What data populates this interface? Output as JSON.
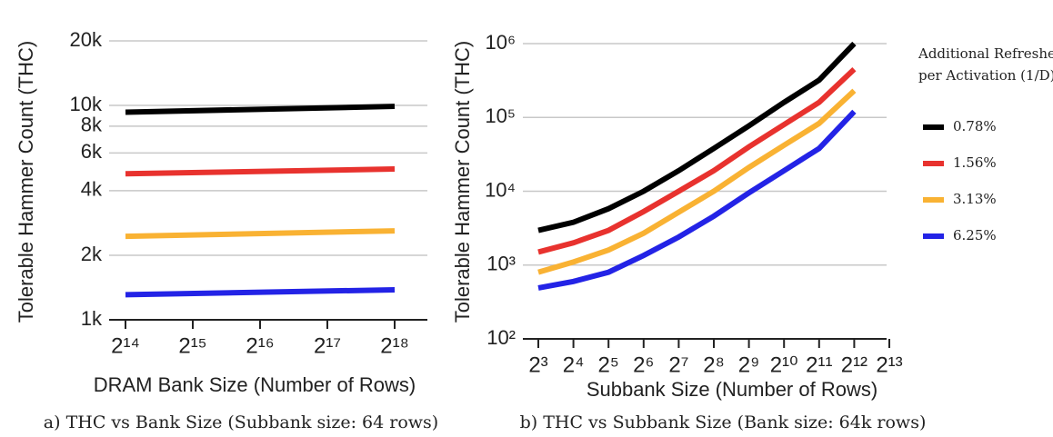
{
  "chart_data": [
    {
      "type": "line",
      "title": "a) THC vs Bank Size (Subbank size: 64 rows)",
      "xlabel": "DRAM Bank Size (Number of Rows)",
      "ylabel": "Tolerable Hammer Count (THC)",
      "x": [
        16384,
        262144
      ],
      "xscale": "log2",
      "yscale": "log",
      "grid": true,
      "xlim": [
        16384,
        262144
      ],
      "xticks": [
        {
          "value": 16384,
          "label": "2¹⁴"
        },
        {
          "value": 32768,
          "label": "2¹⁵"
        },
        {
          "value": 65536,
          "label": "2¹⁶"
        },
        {
          "value": 131072,
          "label": "2¹⁷"
        },
        {
          "value": 262144,
          "label": "2¹⁸"
        }
      ],
      "ylim": [
        1000,
        20000
      ],
      "yticks": [
        {
          "value": 1000,
          "label": "1k"
        },
        {
          "value": 2000,
          "label": "2k"
        },
        {
          "value": 4000,
          "label": "4k"
        },
        {
          "value": 6000,
          "label": "6k"
        },
        {
          "value": 8000,
          "label": "8k"
        },
        {
          "value": 10000,
          "label": "10k"
        },
        {
          "value": 20000,
          "label": "20k"
        }
      ],
      "series": [
        {
          "name": "0.78%",
          "color": "#000000",
          "values": [
            9300,
            9900
          ]
        },
        {
          "name": "1.56%",
          "color": "#e8322e",
          "values": [
            4800,
            5050
          ]
        },
        {
          "name": "3.13%",
          "color": "#f9b233",
          "values": [
            2450,
            2600
          ]
        },
        {
          "name": "6.25%",
          "color": "#2323e6",
          "values": [
            1310,
            1380
          ]
        }
      ]
    },
    {
      "type": "line",
      "title": "b) THC vs Subbank Size (Bank size: 64k rows)",
      "xlabel": "Subbank Size (Number of Rows)",
      "ylabel": "Tolerable Hammer Count (THC)",
      "legend_title": [
        "Additional Refreshes",
        "per Activation (1/D)"
      ],
      "legend": "right",
      "x": [
        8,
        16,
        32,
        64,
        128,
        256,
        512,
        1024,
        2048,
        4096
      ],
      "xscale": "log2",
      "yscale": "log",
      "grid": true,
      "xlim": [
        8,
        8192
      ],
      "xticks": [
        {
          "value": 8,
          "label": "2³"
        },
        {
          "value": 16,
          "label": "2⁴"
        },
        {
          "value": 32,
          "label": "2⁵"
        },
        {
          "value": 64,
          "label": "2⁶"
        },
        {
          "value": 128,
          "label": "2⁷"
        },
        {
          "value": 256,
          "label": "2⁸"
        },
        {
          "value": 512,
          "label": "2⁹"
        },
        {
          "value": 1024,
          "label": "2¹⁰"
        },
        {
          "value": 2048,
          "label": "2¹¹"
        },
        {
          "value": 4096,
          "label": "2¹²"
        },
        {
          "value": 8192,
          "label": "2¹³"
        }
      ],
      "ylim": [
        100,
        1000000
      ],
      "yticks": [
        {
          "value": 100,
          "label": "10²"
        },
        {
          "value": 1000,
          "label": "10³"
        },
        {
          "value": 10000,
          "label": "10⁴"
        },
        {
          "value": 100000,
          "label": "10⁵"
        },
        {
          "value": 1000000,
          "label": "10⁶"
        }
      ],
      "series": [
        {
          "name": "0.78%",
          "color": "#000000",
          "values": [
            2950,
            3800,
            5800,
            10000,
            19000,
            38000,
            77000,
            160000,
            320000,
            1000000
          ]
        },
        {
          "name": "1.56%",
          "color": "#e8322e",
          "values": [
            1500,
            2000,
            2950,
            5300,
            10000,
            19000,
            40000,
            80000,
            160000,
            450000
          ]
        },
        {
          "name": "3.13%",
          "color": "#f9b233",
          "values": [
            800,
            1100,
            1600,
            2700,
            5200,
            10000,
            21000,
            42000,
            83000,
            230000
          ]
        },
        {
          "name": "6.25%",
          "color": "#2323e6",
          "values": [
            490,
            600,
            800,
            1350,
            2400,
            4600,
            9500,
            19000,
            38000,
            120000
          ]
        }
      ]
    }
  ]
}
